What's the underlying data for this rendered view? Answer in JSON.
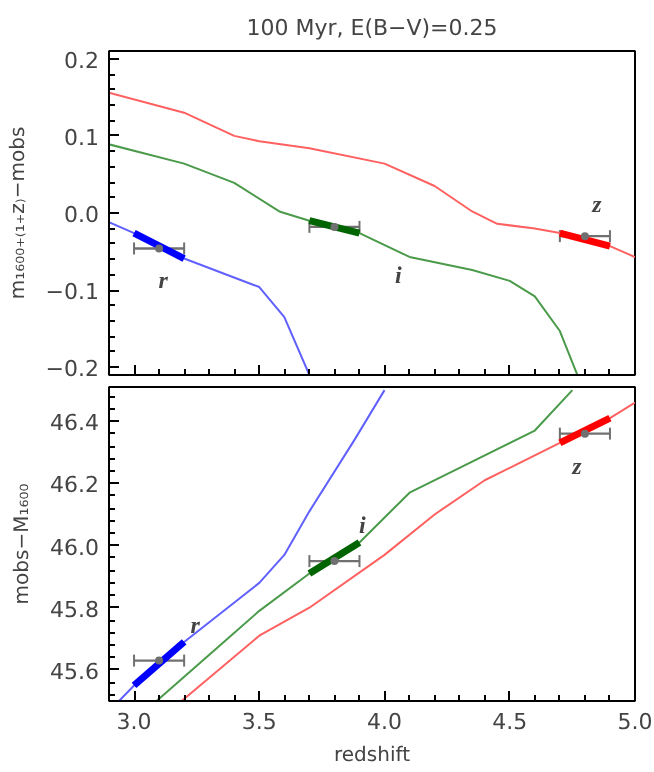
{
  "chart_data": [
    {
      "type": "line",
      "title": "100 Myr, E(B−V)=0.25",
      "ylabel": "m₁₆₀₀₊₍₁₊z₎−mobs",
      "xlim": [
        2.9,
        5.0
      ],
      "ylim": [
        -0.21,
        0.21
      ],
      "tick_labels": "y",
      "grid": false,
      "xticks": [
        {
          "value": 3.0,
          "label": null
        },
        {
          "value": 3.5,
          "label": null
        },
        {
          "value": 4.0,
          "label": null
        },
        {
          "value": 4.5,
          "label": null
        },
        {
          "value": 5.0,
          "label": null
        }
      ],
      "yticks": [
        {
          "value": -0.2,
          "label": "−0.2"
        },
        {
          "value": -0.1,
          "label": "−0.1"
        },
        {
          "value": 0.0,
          "label": "0.0"
        },
        {
          "value": 0.1,
          "label": "0.1"
        },
        {
          "value": 0.2,
          "label": "0.2"
        }
      ],
      "series": [
        {
          "color": "#ff6060",
          "x": [
            2.9,
            3.2,
            3.4,
            3.5,
            3.7,
            4.0,
            4.2,
            4.35,
            4.45,
            4.6,
            4.7,
            4.9,
            5.0
          ],
          "values": [
            0.156,
            0.13,
            0.1,
            0.093,
            0.084,
            0.064,
            0.035,
            0.002,
            -0.014,
            -0.02,
            -0.026,
            -0.043,
            -0.057
          ]
        },
        {
          "color": "#4a9a4a",
          "x": [
            2.9,
            3.2,
            3.4,
            3.58,
            3.7,
            3.9,
            4.1,
            4.35,
            4.5,
            4.6,
            4.7,
            4.77
          ],
          "values": [
            0.089,
            0.064,
            0.039,
            0.002,
            -0.01,
            -0.026,
            -0.057,
            -0.074,
            -0.088,
            -0.108,
            -0.153,
            -0.21
          ]
        },
        {
          "color": "#6060ff",
          "x": [
            2.9,
            3.0,
            3.2,
            3.5,
            3.6,
            3.7
          ],
          "values": [
            -0.012,
            -0.026,
            -0.059,
            -0.096,
            -0.135,
            -0.21
          ]
        },
        {
          "color": "#0000ff",
          "x": [
            3.0,
            3.2
          ],
          "values": [
            -0.026,
            -0.059
          ]
        },
        {
          "color": "#006400",
          "x": [
            3.7,
            3.9
          ],
          "values": [
            -0.01,
            -0.026
          ]
        },
        {
          "color": "#ff0000",
          "x": [
            4.7,
            4.9
          ],
          "values": [
            -0.026,
            -0.043
          ]
        },
        {
          "type": "scatter",
          "marker": "circle",
          "color": "#707070",
          "x": [
            3.1,
            3.8,
            4.8
          ],
          "values": [
            -0.046,
            -0.018,
            -0.03
          ],
          "xerrors": [
            0.1,
            0.1,
            0.1
          ]
        }
      ],
      "annotations": [
        "r",
        "i",
        "z"
      ]
    },
    {
      "type": "line",
      "xlabel": "redshift",
      "ylabel": "mobs−M₁₆₀₀",
      "xlim": [
        2.9,
        5.0
      ],
      "ylim": [
        45.5,
        46.51
      ],
      "grid": false,
      "xticks": [
        {
          "value": 3.0,
          "label": "3.0"
        },
        {
          "value": 3.5,
          "label": "3.5"
        },
        {
          "value": 4.0,
          "label": "4.0"
        },
        {
          "value": 4.5,
          "label": "4.5"
        },
        {
          "value": 5.0,
          "label": "5.0"
        }
      ],
      "yticks": [
        {
          "value": 45.6,
          "label": "45.6"
        },
        {
          "value": 45.8,
          "label": "45.8"
        },
        {
          "value": 46.0,
          "label": "46.0"
        },
        {
          "value": 46.2,
          "label": "46.2"
        },
        {
          "value": 46.4,
          "label": "46.4"
        }
      ],
      "series": [
        {
          "color": "#6060ff",
          "x": [
            2.94,
            3.0,
            3.2,
            3.5,
            3.6,
            3.7,
            3.88,
            4.0
          ],
          "values": [
            45.5,
            45.55,
            45.69,
            45.88,
            45.97,
            46.11,
            46.34,
            46.5
          ]
        },
        {
          "color": "#4a9a4a",
          "x": [
            3.09,
            3.33,
            3.5,
            3.7,
            3.9,
            4.1,
            4.35,
            4.6,
            4.75
          ],
          "values": [
            45.5,
            45.67,
            45.79,
            45.91,
            46.01,
            46.17,
            46.27,
            46.37,
            46.5
          ]
        },
        {
          "color": "#ff6060",
          "x": [
            3.19,
            3.5,
            3.7,
            4.0,
            4.2,
            4.4,
            4.5,
            4.7,
            4.9,
            5.0
          ],
          "values": [
            45.5,
            45.71,
            45.8,
            45.97,
            46.1,
            46.21,
            46.25,
            46.33,
            46.41,
            46.46
          ]
        },
        {
          "color": "#0000ff",
          "x": [
            3.0,
            3.2
          ],
          "values": [
            45.55,
            45.69
          ]
        },
        {
          "color": "#006400",
          "x": [
            3.7,
            3.9
          ],
          "values": [
            45.91,
            46.01
          ]
        },
        {
          "color": "#ff0000",
          "x": [
            4.7,
            4.9
          ],
          "values": [
            46.33,
            46.41
          ]
        },
        {
          "type": "scatter",
          "marker": "circle",
          "color": "#707070",
          "x": [
            3.1,
            3.8,
            4.8
          ],
          "values": [
            45.63,
            45.95,
            46.36
          ],
          "xerrors": [
            0.1,
            0.1,
            0.1
          ]
        }
      ],
      "annotations": [
        "r",
        "i",
        "z"
      ]
    }
  ]
}
